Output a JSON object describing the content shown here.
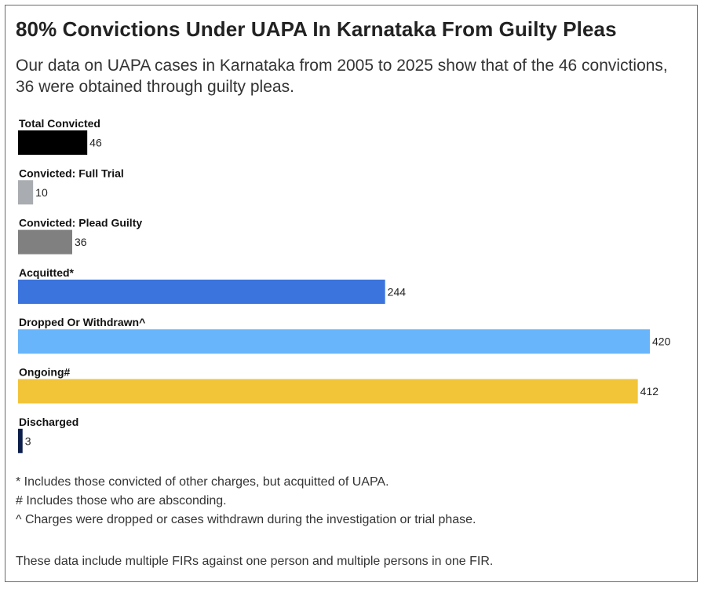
{
  "chart_data": {
    "type": "bar",
    "orientation": "horizontal",
    "title": "80% Convictions Under UAPA In Karnataka From Guilty Pleas",
    "subtitle": "Our data on UAPA cases in Karnataka from 2005 to 2025 show that of the 46 convictions, 36 were obtained through guilty pleas.",
    "categories": [
      "Total Convicted",
      "Convicted: Full Trial",
      "Convicted: Plead Guilty",
      "Acquitted*",
      "Dropped Or Withdrawn^",
      "Ongoing#",
      "Discharged"
    ],
    "values": [
      46,
      10,
      36,
      244,
      420,
      412,
      3
    ],
    "colors": [
      "#000000",
      "#a9acb0",
      "#808080",
      "#3b74dd",
      "#68b5fb",
      "#f2c438",
      "#0c1e4a"
    ],
    "xlim": [
      0,
      420
    ],
    "grid": false,
    "legend": "none"
  },
  "notes": [
    "* Includes those convicted of other charges, but acquitted of UAPA.",
    "# Includes those who are absconding.",
    "^ Charges were dropped or cases withdrawn during the investigation or trial phase."
  ],
  "footer": "These data include multiple FIRs against one person and multiple persons in one FIR."
}
